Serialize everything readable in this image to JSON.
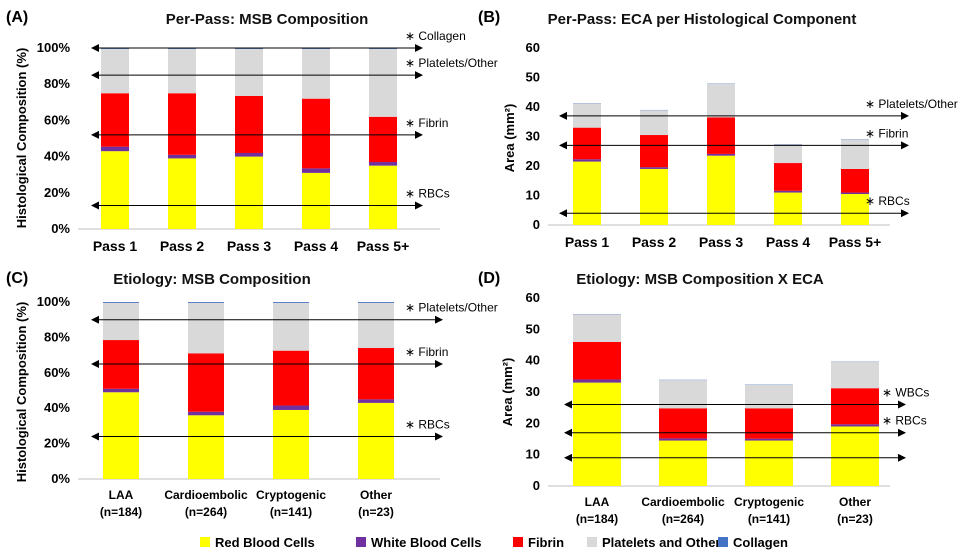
{
  "colors": {
    "rbc": "#ffff00",
    "wbc": "#7030a0",
    "fibrin": "#ff0000",
    "platelets": "#d9d9d9",
    "collagen": "#4472c4"
  },
  "legend": [
    "Red Blood Cells",
    "White Blood Cells",
    "Fibrin",
    "Platelets and Other",
    "Collagen"
  ],
  "chart_data": [
    {
      "panel": "(A)",
      "type": "bar",
      "stacked": true,
      "title": "Per-Pass: MSB Composition",
      "ylabel": "Histological Composition (%)",
      "ylim": [
        0,
        100
      ],
      "yticks": [
        "0%",
        "20%",
        "40%",
        "60%",
        "80%",
        "100%"
      ],
      "categories": [
        "Pass 1",
        "Pass 2",
        "Pass 3",
        "Pass 4",
        "Pass 5+"
      ],
      "series": [
        {
          "name": "Red Blood Cells",
          "values": [
            43,
            39,
            40,
            31,
            35
          ]
        },
        {
          "name": "White Blood Cells",
          "values": [
            2.5,
            2,
            2,
            2.5,
            2
          ]
        },
        {
          "name": "Fibrin",
          "values": [
            29.5,
            34,
            31.5,
            38.5,
            25
          ]
        },
        {
          "name": "Platelets and Other",
          "values": [
            24.5,
            24.5,
            26,
            27.5,
            37.5
          ]
        },
        {
          "name": "Collagen",
          "values": [
            0.5,
            0.5,
            0.5,
            0.5,
            0.5
          ]
        }
      ],
      "annotations": [
        {
          "label": "Collagen",
          "y": 100
        },
        {
          "label": "Platelets/Other",
          "y": 85
        },
        {
          "label": "Fibrin",
          "y": 52
        },
        {
          "label": "RBCs",
          "y": 13
        }
      ]
    },
    {
      "panel": "(B)",
      "type": "bar",
      "stacked": true,
      "title": "Per-Pass: ECA per Histological Component",
      "ylabel": "Area (mm²)",
      "ylim": [
        0,
        60
      ],
      "yticks": [
        "0",
        "10",
        "20",
        "30",
        "40",
        "50",
        "60"
      ],
      "categories": [
        "Pass 1",
        "Pass 2",
        "Pass 3",
        "Pass 4",
        "Pass 5+"
      ],
      "series": [
        {
          "name": "Red Blood Cells",
          "values": [
            21.5,
            19,
            23.5,
            11,
            10.5
          ]
        },
        {
          "name": "White Blood Cells",
          "values": [
            0.8,
            0.6,
            0.6,
            0.6,
            0.5
          ]
        },
        {
          "name": "Fibrin",
          "values": [
            10.7,
            10.9,
            12.4,
            9.4,
            8
          ]
        },
        {
          "name": "Platelets and Other",
          "values": [
            8.2,
            8.4,
            11.4,
            6.3,
            10
          ]
        },
        {
          "name": "Collagen",
          "values": [
            0.1,
            0.1,
            0.1,
            0.1,
            0.1
          ]
        }
      ],
      "annotations": [
        {
          "label": "Platelets/Other",
          "y": 37
        },
        {
          "label": "Fibrin",
          "y": 27
        },
        {
          "label": "RBCs",
          "y": 4
        }
      ]
    },
    {
      "panel": "(C)",
      "type": "bar",
      "stacked": true,
      "title": "Etiology: MSB Composition",
      "ylabel": "Histological Composition (%)",
      "ylim": [
        0,
        100
      ],
      "yticks": [
        "0%",
        "20%",
        "40%",
        "60%",
        "80%",
        "100%"
      ],
      "categories": [
        "LAA",
        "Cardioembolic",
        "Cryptogenic",
        "Other"
      ],
      "category_sublabels": [
        "(n=184)",
        "(n=264)",
        "(n=141)",
        "(n=23)"
      ],
      "series": [
        {
          "name": "Red Blood Cells",
          "values": [
            49,
            36,
            39,
            43
          ]
        },
        {
          "name": "White Blood Cells",
          "values": [
            2,
            2,
            2.5,
            2
          ]
        },
        {
          "name": "Fibrin",
          "values": [
            27.5,
            33,
            31,
            29
          ]
        },
        {
          "name": "Platelets and Other",
          "values": [
            21,
            28.5,
            27,
            25.5
          ]
        },
        {
          "name": "Collagen",
          "values": [
            0.5,
            0.5,
            0.5,
            0.5
          ]
        }
      ],
      "annotations": [
        {
          "label": "Platelets/Other",
          "y": 90
        },
        {
          "label": "Fibrin",
          "y": 65
        },
        {
          "label": "RBCs",
          "y": 24
        }
      ]
    },
    {
      "panel": "(D)",
      "type": "bar",
      "stacked": true,
      "title": "Etiology: MSB Composition X ECA",
      "ylabel": "Area (mm²)",
      "ylim": [
        0,
        60
      ],
      "yticks": [
        "0",
        "10",
        "20",
        "30",
        "40",
        "50",
        "60"
      ],
      "categories": [
        "LAA",
        "Cardioembolic",
        "Cryptogenic",
        "Other"
      ],
      "category_sublabels": [
        "(n=184)",
        "(n=264)",
        "(n=141)",
        "(n=23)"
      ],
      "series": [
        {
          "name": "Red Blood Cells",
          "values": [
            33,
            14.5,
            14.5,
            19
          ]
        },
        {
          "name": "White Blood Cells",
          "values": [
            1,
            0.7,
            0.6,
            0.7
          ]
        },
        {
          "name": "Fibrin",
          "values": [
            12,
            9.6,
            9.7,
            11.5
          ]
        },
        {
          "name": "Platelets and Other",
          "values": [
            8.8,
            9,
            7.5,
            8.4
          ]
        },
        {
          "name": "Collagen",
          "values": [
            0.1,
            0.1,
            0.1,
            0.1
          ]
        }
      ],
      "annotations": [
        {
          "label": "WBCs",
          "y": 26
        },
        {
          "label": "RBCs",
          "y": 17
        },
        {
          "label": "",
          "y": 9
        }
      ]
    }
  ]
}
